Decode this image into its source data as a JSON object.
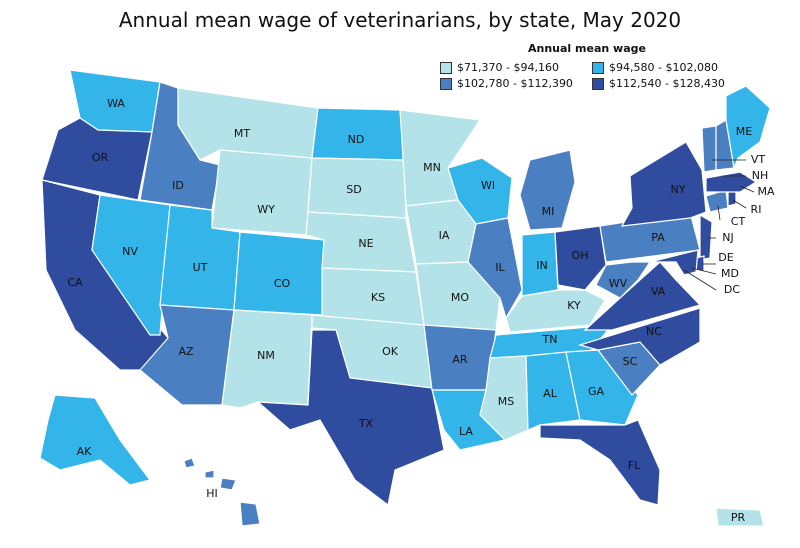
{
  "title": "Annual mean wage of veterinarians, by state, May 2020",
  "legend": {
    "title": "Annual mean wage",
    "items": [
      {
        "label": "$71,370 - $94,160",
        "color": "#b3e3e8"
      },
      {
        "label": "$94,580 - $102,080",
        "color": "#33b5ea"
      },
      {
        "label": "$102,780 - $112,390",
        "color": "#4a7fc1"
      },
      {
        "label": "$112,540 - $128,430",
        "color": "#2f4c9e"
      }
    ]
  },
  "states": [
    {
      "code": "WA",
      "bin": 1
    },
    {
      "code": "OR",
      "bin": 3
    },
    {
      "code": "CA",
      "bin": 3
    },
    {
      "code": "ID",
      "bin": 2
    },
    {
      "code": "NV",
      "bin": 1
    },
    {
      "code": "MT",
      "bin": 0
    },
    {
      "code": "WY",
      "bin": 0
    },
    {
      "code": "UT",
      "bin": 1
    },
    {
      "code": "AZ",
      "bin": 2
    },
    {
      "code": "CO",
      "bin": 1
    },
    {
      "code": "NM",
      "bin": 0
    },
    {
      "code": "ND",
      "bin": 1
    },
    {
      "code": "SD",
      "bin": 0
    },
    {
      "code": "NE",
      "bin": 0
    },
    {
      "code": "KS",
      "bin": 0
    },
    {
      "code": "OK",
      "bin": 0
    },
    {
      "code": "TX",
      "bin": 3
    },
    {
      "code": "MN",
      "bin": 0
    },
    {
      "code": "IA",
      "bin": 0
    },
    {
      "code": "MO",
      "bin": 0
    },
    {
      "code": "AR",
      "bin": 2
    },
    {
      "code": "LA",
      "bin": 1
    },
    {
      "code": "WI",
      "bin": 1
    },
    {
      "code": "IL",
      "bin": 2
    },
    {
      "code": "MI",
      "bin": 2
    },
    {
      "code": "IN",
      "bin": 1
    },
    {
      "code": "OH",
      "bin": 3
    },
    {
      "code": "KY",
      "bin": 0
    },
    {
      "code": "TN",
      "bin": 1
    },
    {
      "code": "MS",
      "bin": 0
    },
    {
      "code": "AL",
      "bin": 1
    },
    {
      "code": "GA",
      "bin": 1
    },
    {
      "code": "FL",
      "bin": 3
    },
    {
      "code": "SC",
      "bin": 2
    },
    {
      "code": "NC",
      "bin": 3
    },
    {
      "code": "VA",
      "bin": 3
    },
    {
      "code": "WV",
      "bin": 2
    },
    {
      "code": "PA",
      "bin": 2
    },
    {
      "code": "NY",
      "bin": 3
    },
    {
      "code": "NJ",
      "bin": 3
    },
    {
      "code": "DE",
      "bin": 3
    },
    {
      "code": "MD",
      "bin": 3
    },
    {
      "code": "DC",
      "bin": 3
    },
    {
      "code": "CT",
      "bin": 2
    },
    {
      "code": "RI",
      "bin": 3
    },
    {
      "code": "MA",
      "bin": 3
    },
    {
      "code": "VT",
      "bin": 2
    },
    {
      "code": "NH",
      "bin": 2
    },
    {
      "code": "ME",
      "bin": 1
    },
    {
      "code": "AK",
      "bin": 1
    },
    {
      "code": "HI",
      "bin": 2
    },
    {
      "code": "PR",
      "bin": 0
    }
  ]
}
